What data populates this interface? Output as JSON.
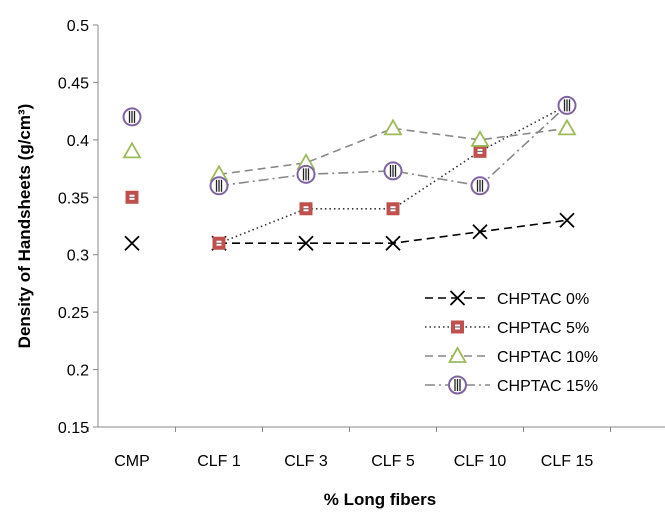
{
  "chart_data": {
    "type": "line",
    "categories": [
      "CMP",
      "CLF 1",
      "CLF 3",
      "CLF 5",
      "CLF 10",
      "CLF 15"
    ],
    "xlabel": "% Long fibers",
    "ylabel": "Density of Handsheets (g/cm³)",
    "ylim": [
      0.15,
      0.5
    ],
    "yticks": [
      "0.15",
      "0.2",
      "0.25",
      "0.3",
      "0.35",
      "0.4",
      "0.45",
      "0.5"
    ],
    "grid": false,
    "legend_position": "bottom-right",
    "series": [
      {
        "name": "CHPTAC 0%",
        "values": [
          0.31,
          0.31,
          0.31,
          0.31,
          0.32,
          0.33
        ],
        "line_style": "dashed",
        "marker": "x",
        "color": "#000000"
      },
      {
        "name": "CHPTAC 5%",
        "values": [
          0.35,
          0.31,
          0.34,
          0.34,
          0.39,
          0.43
        ],
        "line_style": "dotted",
        "marker": "square",
        "color": "#c0504d"
      },
      {
        "name": "CHPTAC 10%",
        "values": [
          0.39,
          0.37,
          0.38,
          0.41,
          0.4,
          0.41
        ],
        "line_style": "dashed",
        "marker": "triangle",
        "color": "#9bbb59"
      },
      {
        "name": "CHPTAC 15%",
        "values": [
          0.42,
          0.36,
          0.37,
          0.373,
          0.36,
          0.43
        ],
        "line_style": "dash-dot",
        "marker": "circle",
        "color": "#8064a2"
      }
    ]
  }
}
